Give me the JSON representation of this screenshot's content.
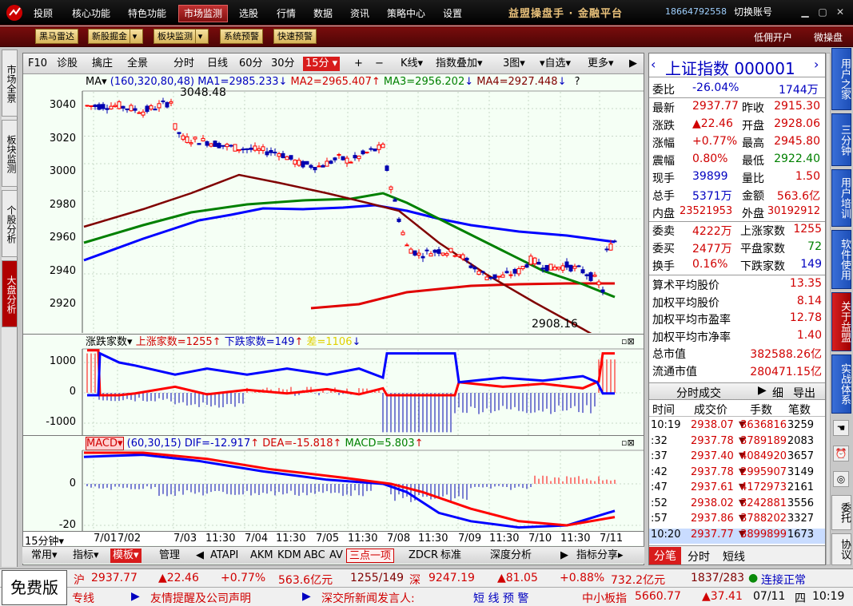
{
  "topmenu": {
    "items": [
      "投顾",
      "核心功能",
      "特色功能",
      "市场监测",
      "选股",
      "行情",
      "数据",
      "资讯",
      "策略中心",
      "设置"
    ],
    "brand": "益盟操盘手 · 金融平台",
    "phone": "18664792558",
    "switch": "切换账号"
  },
  "toolbar2": {
    "items": [
      "黑马雷达",
      "新股掘金",
      "板块监测",
      "系统预警",
      "快速预警"
    ],
    "right": [
      "低佣开户",
      "微操盘"
    ]
  },
  "lefttabs": [
    "市场全景",
    "板块监测",
    "个股分析",
    "大盘分析"
  ],
  "charttb": {
    "items": [
      "F10",
      "诊股",
      "擒庄",
      "全景",
      "分时",
      "日线",
      "60分",
      "30分",
      "15分",
      "+",
      "−",
      "K线",
      "指数叠加",
      "3图",
      "自选",
      "更多"
    ]
  },
  "ma": {
    "label": "MA",
    "params": "(160,320,80,48)",
    "ma1": "MA1=2985.233",
    "ma2": "MA2=2965.407",
    "ma3": "MA3=2956.202",
    "ma4": "MA4=2927.448",
    "arrow_down": "↓",
    "arrow_up": "↑",
    "q": "?"
  },
  "price_axis": [
    "3040",
    "3020",
    "3000",
    "2980",
    "2960",
    "2940",
    "2920"
  ],
  "price_marks": {
    "high": "3048.48",
    "low": "2908.16"
  },
  "zd": {
    "label": "涨跌家数",
    "up": "上涨家数=1255",
    "down": "下跌家数=149",
    "diff": "差=1106",
    "arrow_up": "↑",
    "arrow_down": "↓",
    "axis": [
      "1000",
      "0",
      "-1000"
    ]
  },
  "macd": {
    "label": "MACD",
    "params": "(60,30,15)",
    "dif": "DIF=-12.917",
    "dea": "DEA=-15.818",
    "macd": "MACD=5.803",
    "arrow": "↑",
    "axis": [
      "0",
      "-20"
    ]
  },
  "period": "15分钟",
  "time_axis": [
    "7/01",
    "7/02",
    "7/03",
    "11:30",
    "7/04",
    "11:30",
    "7/05",
    "11:30",
    "7/08",
    "11:30",
    "7/09",
    "11:30",
    "7/10",
    "11:30",
    "7/11"
  ],
  "bottomtb": {
    "items": [
      "常用",
      "指标",
      "模板",
      "管理",
      "ATAPI",
      "AKM",
      "KDM",
      "ABC",
      "AV",
      "三点一项",
      "ZDCR",
      "标准",
      "深度分析",
      "指标分享"
    ]
  },
  "quote": {
    "title": "上证指数 000001",
    "weibi_label": "委比",
    "weibi": "-26.04%",
    "weibi_vol": "1744万",
    "rows": [
      [
        "最新",
        "2937.77",
        "昨收",
        "2915.30"
      ],
      [
        "涨跌",
        "▲22.46",
        "开盘",
        "2928.06"
      ],
      [
        "涨幅",
        "+0.77%",
        "最高",
        "2945.80"
      ],
      [
        "震幅",
        "0.80%",
        "最低",
        "2922.40"
      ],
      [
        "现手",
        "39899",
        "量比",
        "1.50"
      ],
      [
        "总手",
        "5371万",
        "金额",
        "563.6亿"
      ],
      [
        "内盘",
        "23521953",
        "外盘",
        "30192912"
      ]
    ],
    "rows2": [
      [
        "委卖",
        "4222万",
        "上涨家数",
        "1255"
      ],
      [
        "委买",
        "2477万",
        "平盘家数",
        "72"
      ],
      [
        "换手",
        "0.16%",
        "下跌家数",
        "149"
      ]
    ],
    "rows3": [
      [
        "算术平均股价",
        "13.35"
      ],
      [
        "加权平均股价",
        "8.14"
      ],
      [
        "加权平均市盈率",
        "12.78"
      ],
      [
        "加权平均市净率",
        "1.40"
      ],
      [
        "总市值",
        "382588.26亿"
      ],
      [
        "流通市值",
        "280471.15亿"
      ]
    ],
    "tick_title": "分时成交",
    "tick_btn1": "细",
    "tick_btn2": "导出",
    "tick_headers": [
      "时间",
      "成交价",
      "手数",
      "笔数"
    ],
    "ticks": [
      [
        "10:19",
        "2938.07",
        "3636816",
        "3259"
      ],
      [
        ":32",
        "2937.78",
        "3789189",
        "2083"
      ],
      [
        ":37",
        "2937.40",
        "4084920",
        "3657"
      ],
      [
        ":42",
        "2937.78",
        "2995907",
        "3149"
      ],
      [
        ":47",
        "2937.61",
        "4172973",
        "2161"
      ],
      [
        ":52",
        "2938.02",
        "3242881",
        "3556"
      ],
      [
        ":57",
        "2937.86",
        "3788202",
        "3327"
      ],
      [
        "10:20",
        "2937.77",
        "3899899",
        "1673"
      ]
    ],
    "tabs": [
      "分笔",
      "分时",
      "短线"
    ]
  },
  "sidetabs": [
    "用户之家",
    "三分钟",
    "用户培训",
    "软件使用",
    "关于益盟",
    "实战体系",
    "委托",
    "协议"
  ],
  "status": {
    "free": "免费版",
    "sh_label": "沪",
    "sh_price": "2937.77",
    "sh_chg": "▲22.46",
    "sh_pct": "+0.77%",
    "sh_amt": "563.6亿元",
    "sh_ud": "1255/149",
    "sz_label": "深",
    "sz_price": "9247.19",
    "sz_chg": "▲81.05",
    "sz_pct": "+0.88%",
    "sz_amt": "732.2亿元",
    "sz_ud": "1837/283",
    "conn": "连接正常"
  },
  "status2": {
    "items": [
      "专线",
      "友情提醒及公司声明",
      "深交所新闻发言人:",
      "短 线 预 警"
    ],
    "zx_label": "中小板指",
    "zx_price": "5660.77",
    "zx_chg": "▲37.41",
    "date": "07/11",
    "weekday": "四",
    "time": "10:19"
  },
  "colors": {
    "ma1": "#0000ff",
    "ma2": "#e00000",
    "ma3": "#008000",
    "ma4": "#800000",
    "up": "#ff0000",
    "down": "#0000ff"
  }
}
